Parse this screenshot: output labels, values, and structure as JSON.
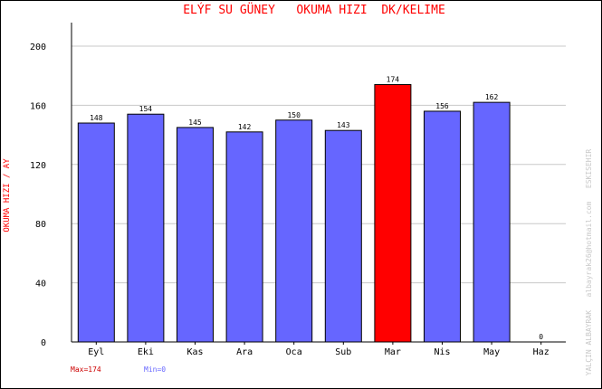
{
  "chart_data": {
    "type": "bar",
    "title": "ELÝF SU GÜNEY   OKUMA HIZI  DK/KELIME",
    "ylabel": "OKUMA HIZI / AY",
    "xlabel": "",
    "categories": [
      "Eyl",
      "Eki",
      "Kas",
      "Ara",
      "Oca",
      "Sub",
      "Mar",
      "Nis",
      "May",
      "Haz"
    ],
    "values": [
      148,
      154,
      145,
      142,
      150,
      143,
      174,
      156,
      162,
      0
    ],
    "ylim": [
      0,
      200
    ],
    "yticks": [
      0,
      40,
      80,
      120,
      160,
      200
    ],
    "grid": true,
    "bar_color": "#6666ff",
    "max_bar_color": "#ff0000",
    "title_color": "#ff0000",
    "max_label": "Max=174",
    "min_label": "Min=0",
    "max_label_color": "#cc0000",
    "min_label_color": "#6666ff",
    "credit": "YALÇIN ALBAYRAK   albayrak26@hotmail.com   ESKISEHIR"
  }
}
